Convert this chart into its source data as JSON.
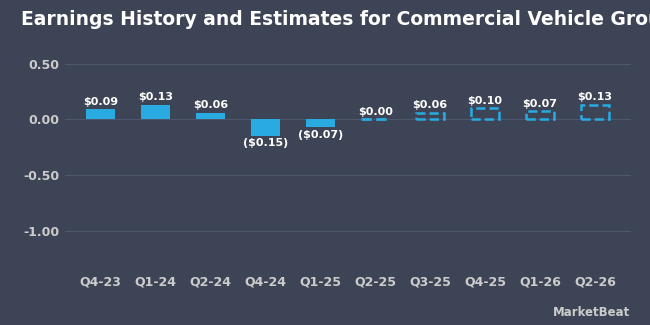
{
  "categories": [
    "Q4-23",
    "Q1-24",
    "Q2-24",
    "Q4-24",
    "Q1-25",
    "Q2-25",
    "Q3-25",
    "Q4-25",
    "Q1-26",
    "Q2-26"
  ],
  "values": [
    0.09,
    0.13,
    0.06,
    -0.15,
    -0.07,
    0.0,
    0.06,
    0.1,
    0.07,
    0.13
  ],
  "is_estimate": [
    false,
    false,
    false,
    false,
    false,
    true,
    true,
    true,
    true,
    true
  ],
  "labels": [
    "$0.09",
    "$0.13",
    "$0.06",
    "($0.15)",
    "($0.07)",
    "$0.00",
    "$0.06",
    "$0.10",
    "$0.07",
    "$0.13"
  ],
  "bar_color": "#29abe2",
  "background_color": "#3d4455",
  "text_color": "#ffffff",
  "label_color_estimate": "#29abe2",
  "grid_color": "#505870",
  "title": "Earnings History and Estimates for Commercial Vehicle Group",
  "ylim": [
    -1.35,
    0.72
  ],
  "yticks": [
    0.5,
    0.0,
    -0.5,
    -1.0
  ],
  "ytick_labels": [
    "0.50",
    "0.00",
    "-0.50",
    "-1.00"
  ],
  "title_fontsize": 13.5,
  "tick_fontsize": 9,
  "label_fontsize": 8,
  "bar_width": 0.52
}
